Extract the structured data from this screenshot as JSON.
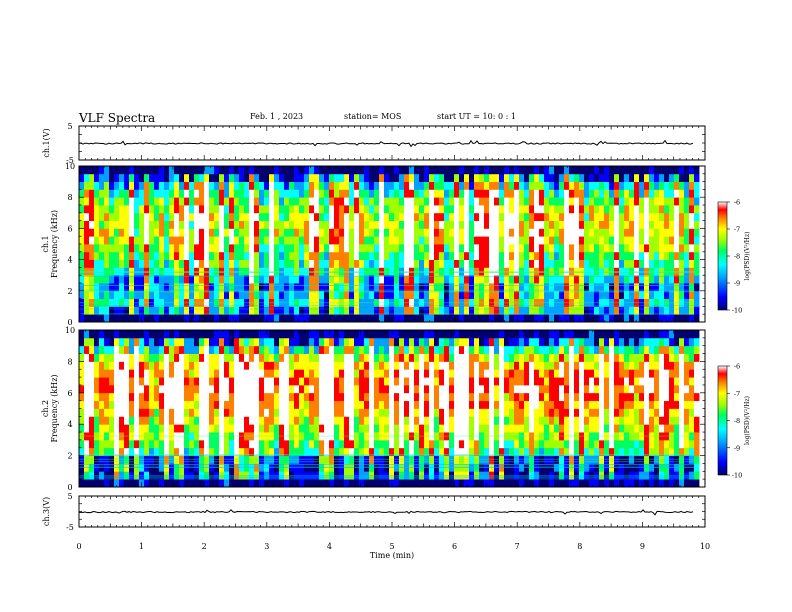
{
  "header": {
    "title": "VLF Spectra",
    "date": "Feb. 1 , 2023",
    "station": "station= MOS",
    "start": "start UT = 10: 0 : 1"
  },
  "colors": {
    "colormap": [
      "#000070",
      "#0000ff",
      "#00a0ff",
      "#00ffff",
      "#00ff60",
      "#a0ff00",
      "#ffff00",
      "#ff8000",
      "#ff0000",
      "#ffffff"
    ],
    "axes": "#000000"
  },
  "chart_data": [
    {
      "type": "line",
      "name": "ch1-waveform",
      "ylabel": "ch.1(V)",
      "ylim": [
        -5,
        5
      ],
      "yticks": [
        5,
        -5
      ],
      "x_range": [
        0,
        9.83
      ],
      "level": 0
    },
    {
      "type": "heatmap",
      "name": "ch1-spectrogram",
      "ylabel_top": "ch.1",
      "ylabel": "Frequency (kHz)",
      "ylim": [
        0,
        10
      ],
      "yticks": [
        0,
        2,
        4,
        6,
        8,
        10
      ],
      "x_range": [
        0,
        9.83
      ],
      "band_profile": [
        0.05,
        0.22,
        0.3,
        0.25,
        0.22,
        0.3,
        0.38,
        0.42,
        0.45,
        0.52,
        0.56,
        0.58,
        0.6,
        0.58,
        0.55,
        0.48,
        0.42,
        0.3,
        0.12,
        0.05
      ],
      "colorbar": {
        "label": "log(PSD)(V²/Hz)",
        "ticks": [
          -6,
          -7,
          -8,
          -9,
          -10
        ],
        "range": [
          -10,
          -6
        ]
      }
    },
    {
      "type": "heatmap",
      "name": "ch2-spectrogram",
      "ylabel_top": "ch.2",
      "ylabel": "Frequency (kHz)",
      "ylim": [
        0,
        10
      ],
      "yticks": [
        0,
        2,
        4,
        6,
        8,
        10
      ],
      "x_range": [
        0,
        9.83
      ],
      "band_profile": [
        0.05,
        0.12,
        0.14,
        0.16,
        0.45,
        0.5,
        0.55,
        0.58,
        0.62,
        0.7,
        0.74,
        0.78,
        0.82,
        0.8,
        0.76,
        0.7,
        0.58,
        0.4,
        0.18,
        0.05
      ],
      "colorbar": {
        "label": "log(PSD)(V²/Hz)",
        "ticks": [
          -6,
          -7,
          -8,
          -9,
          -10
        ],
        "range": [
          -10,
          -6
        ]
      }
    },
    {
      "type": "line",
      "name": "ch3-waveform",
      "ylabel": "ch.3(V)",
      "ylim": [
        -5,
        5
      ],
      "yticks": [
        5,
        -5
      ],
      "x_range": [
        0,
        9.83
      ],
      "level": 0
    }
  ],
  "x_axis": {
    "label": "Time (min)",
    "range": [
      0,
      10
    ],
    "ticks": [
      "0",
      "1",
      "2",
      "3",
      "4",
      "5",
      "6",
      "7",
      "8",
      "9",
      "10"
    ]
  }
}
